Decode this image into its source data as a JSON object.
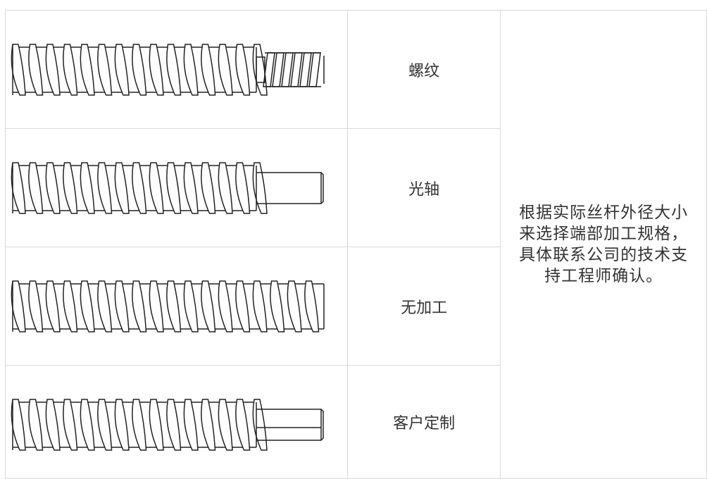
{
  "table": {
    "rows": [
      {
        "label": "螺纹"
      },
      {
        "label": "光轴"
      },
      {
        "label": "无加工"
      },
      {
        "label": "客户定制"
      }
    ],
    "note": "根据实际丝杆外径大小来选择端部加工规格，具体联系公司的技术支持工程师确认。"
  }
}
